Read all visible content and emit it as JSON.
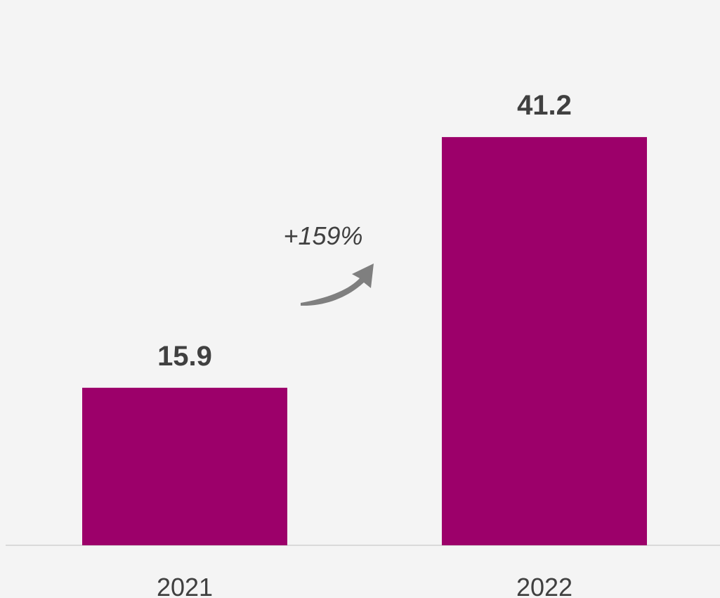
{
  "chart_data": {
    "type": "bar",
    "categories": [
      "2021",
      "2022"
    ],
    "values": [
      15.9,
      41.2
    ],
    "value_labels": [
      "15.9",
      "41.2"
    ],
    "annotation": "+159%",
    "bar_color": "#9c006a",
    "annotation_arrow_color": "#7f7f7f",
    "grid": false,
    "legend": "none"
  }
}
